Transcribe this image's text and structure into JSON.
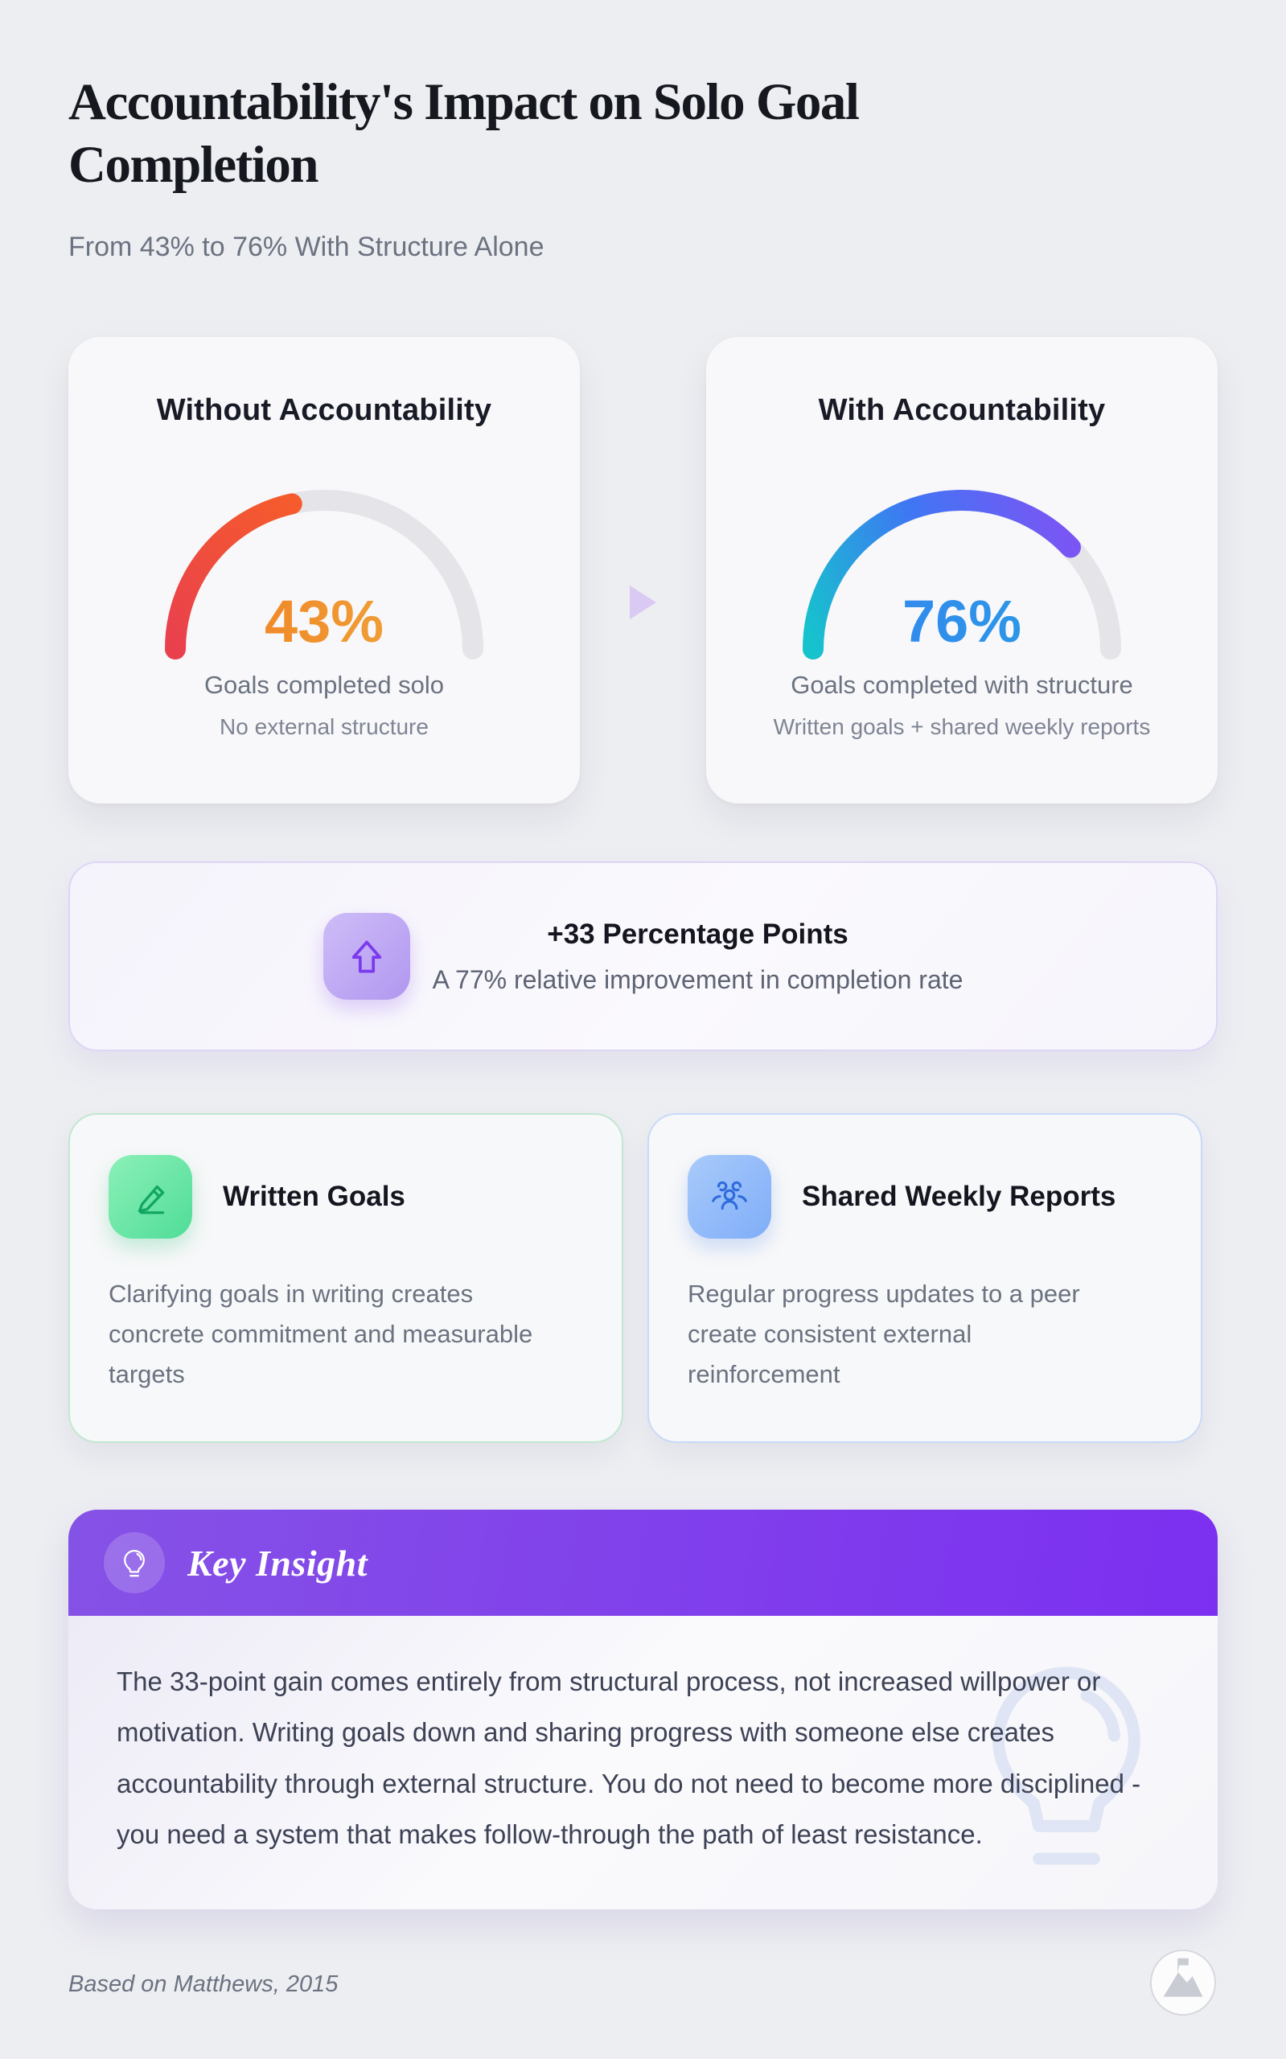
{
  "theme": {
    "page-bg": "#edeef2",
    "card-bg": "#f8f8fa",
    "ink": "#16181f",
    "muted": "#6b7280",
    "muted2": "#7e8494",
    "track": "#e4e4e9",
    "arrow": "#d9c9f3",
    "banner-border": "#ded5f6",
    "green-border": "#c2e7d1",
    "blue-border": "#c9d9f8",
    "purple-grad-a": "#8552e6",
    "purple-grad-b": "#7c2ff0"
  },
  "header": {
    "title": "Accountability's Impact on Solo Goal Completion",
    "subtitle": "From 43% to 76% With Structure Alone"
  },
  "chart_data": {
    "type": "gauge",
    "unit": "%",
    "range": [
      0,
      100
    ],
    "divider_icon": "play-arrow-icon",
    "gauges": [
      {
        "title": "Without Accountability",
        "value": 43,
        "display": "43%",
        "caption": "Goals completed solo",
        "subcaption": "No external structure",
        "arc_colors": [
          "#e9404e",
          "#f55b2c"
        ],
        "value_colors": [
          "#f2771e",
          "#eeb03f"
        ],
        "track_color": "#e4e4e9"
      },
      {
        "title": "With Accountability",
        "value": 76,
        "display": "76%",
        "caption": "Goals completed with structure",
        "subcaption": "Written goals + shared weekly reports",
        "arc_colors": [
          "#16c3cd",
          "#3e77f3",
          "#7b55f4"
        ],
        "value_colors": [
          "#377ef2",
          "#27a3e3"
        ],
        "track_color": "#e4e4e9"
      }
    ],
    "comparison": {
      "icon": "arrow-up-icon",
      "title": "+33 Percentage Points",
      "subtitle": "A 77% relative improvement in completion rate"
    }
  },
  "features": [
    {
      "icon": "pencil-icon",
      "title": "Written Goals",
      "body": "Clarifying goals in writing creates concrete commitment and measurable targets"
    },
    {
      "icon": "users-icon",
      "title": "Shared Weekly Reports",
      "body": "Regular progress updates to a peer create consistent external reinforcement"
    }
  ],
  "insight": {
    "icon": "lightbulb-icon",
    "title": "Key Insight",
    "body": "The 33-point gain comes entirely from structural process, not increased willpower or motivation. Writing goals down and sharing progress with someone else creates accountability through external structure. You do not need to become more disciplined - you need a system that makes follow-through the path of least resistance."
  },
  "footer": {
    "source": "Based on Matthews, 2015",
    "logo": "mountain-flag-logo"
  }
}
